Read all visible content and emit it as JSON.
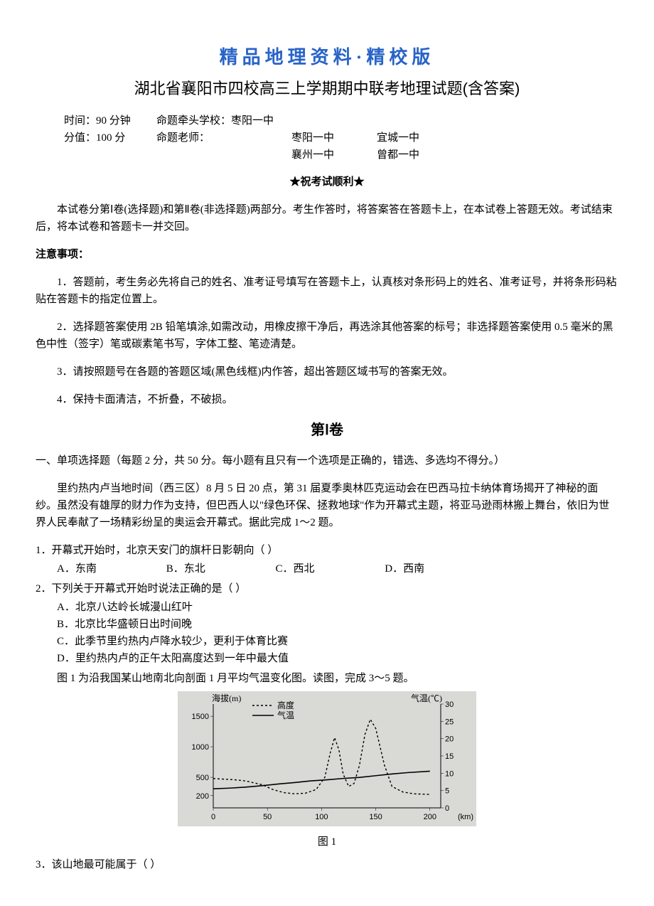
{
  "header_banner": "精品地理资料·精校版",
  "title": "湖北省襄阳市四校高三上学期期中联考地理试题(含答案)",
  "meta": {
    "time_label": "时间：90 分钟",
    "lead_school_label": "命题牵头学校：枣阳一中",
    "score_label": "分值：100 分",
    "teacher_label": "命题老师：",
    "schools": [
      "枣阳一中",
      "宜城一中",
      "襄州一中",
      "曾都一中"
    ]
  },
  "wish": "★祝考试顺利★",
  "intro_p1": "本试卷分第Ⅰ卷(选择题)和第Ⅱ卷(非选择题)两部分。考生作答时，将答案答在答题卡上，在本试卷上答题无效。考试结束后，将本试卷和答题卡一并交回。",
  "notice_header": "注意事项：",
  "notices": [
    "1．答题前，考生务必先将自己的姓名、准考证号填写在答题卡上，认真核对条形码上的姓名、准考证号，并将条形码粘贴在答题卡的指定位置上。",
    "2．选择题答案使用 2B 铅笔填涂,如需改动，用橡皮擦干净后，再选涂其他答案的标号；非选择题答案使用 0.5 毫米的黑色中性（签字）笔或碳素笔书写，字体工整、笔迹清楚。",
    "3．请按照题号在各题的答题区域(黑色线框)内作答，超出答题区域书写的答案无效。",
    "4．保持卡面清洁，不折叠，不破损。"
  ],
  "section1_title": "第Ⅰ卷",
  "mc_intro": "一、单项选择题（每题 2 分，共 50 分。每小题有且只有一个选项是正确的，错选、多选均不得分。）",
  "passage1": "里约热内卢当地时间（西三区）8 月 5 日 20 点，第 31 届夏季奥林匹克运动会在巴西马拉卡纳体育场揭开了神秘的面纱。虽然没有雄厚的财力作为支持，但巴西人以\"绿色环保、拯救地球\"作为开幕式主题，将亚马逊雨林搬上舞台，依旧为世界人民奉献了一场精彩纷呈的奥运会开幕式。据此完成 1～2 题。",
  "q1": {
    "stem": "1．开幕式开始时，北京天安门的旗杆日影朝向（   ）",
    "opts": {
      "A": "A．东南",
      "B": "B．东北",
      "C": "C．西北",
      "D": "D．西南"
    }
  },
  "q2": {
    "stem": "2．下列关于开幕式开始时说法正确的是（   ）",
    "opts": {
      "A": "A．北京八达岭长城漫山红叶",
      "B": "B．北京比华盛顿日出时间晚",
      "C": "C．此季节里约热内卢降水较少，更利于体育比赛",
      "D": "D．里约热内卢的正午太阳高度达到一年中最大值"
    }
  },
  "passage2": "图 1 为沿我国某山地南北向剖面 1 月平均气温变化图。读图，完成 3～5 题。",
  "figure1": {
    "caption": "图 1",
    "bg_color": "#d9d9d6",
    "left_axis_label": "海拔(m)",
    "right_axis_label": "气温(℃)",
    "legend_alt": "高度",
    "legend_temp": "气温",
    "x_ticks": [
      0,
      50,
      100,
      150,
      200
    ],
    "x_unit_label": "(km)",
    "left_ticks": [
      200,
      500,
      1000,
      1500
    ],
    "right_ticks": [
      0,
      5,
      10,
      15,
      20,
      25,
      30
    ],
    "altitude_series": [
      {
        "x": 0,
        "y": 480
      },
      {
        "x": 10,
        "y": 470
      },
      {
        "x": 20,
        "y": 460
      },
      {
        "x": 30,
        "y": 440
      },
      {
        "x": 45,
        "y": 380
      },
      {
        "x": 55,
        "y": 300
      },
      {
        "x": 65,
        "y": 250
      },
      {
        "x": 75,
        "y": 230
      },
      {
        "x": 85,
        "y": 240
      },
      {
        "x": 95,
        "y": 300
      },
      {
        "x": 103,
        "y": 500
      },
      {
        "x": 108,
        "y": 900
      },
      {
        "x": 112,
        "y": 1150
      },
      {
        "x": 116,
        "y": 950
      },
      {
        "x": 120,
        "y": 550
      },
      {
        "x": 125,
        "y": 350
      },
      {
        "x": 130,
        "y": 400
      },
      {
        "x": 135,
        "y": 700
      },
      {
        "x": 140,
        "y": 1200
      },
      {
        "x": 145,
        "y": 1450
      },
      {
        "x": 150,
        "y": 1300
      },
      {
        "x": 158,
        "y": 700
      },
      {
        "x": 165,
        "y": 350
      },
      {
        "x": 175,
        "y": 260
      },
      {
        "x": 185,
        "y": 230
      },
      {
        "x": 200,
        "y": 220
      }
    ],
    "temp_series": [
      {
        "x": 0,
        "y": 5.5
      },
      {
        "x": 15,
        "y": 5.7
      },
      {
        "x": 30,
        "y": 6.0
      },
      {
        "x": 45,
        "y": 6.4
      },
      {
        "x": 60,
        "y": 6.9
      },
      {
        "x": 75,
        "y": 7.3
      },
      {
        "x": 90,
        "y": 7.8
      },
      {
        "x": 105,
        "y": 8.1
      },
      {
        "x": 120,
        "y": 8.5
      },
      {
        "x": 135,
        "y": 8.8
      },
      {
        "x": 150,
        "y": 9.3
      },
      {
        "x": 165,
        "y": 9.8
      },
      {
        "x": 180,
        "y": 10.2
      },
      {
        "x": 200,
        "y": 10.6
      }
    ],
    "left_range": [
      0,
      1700
    ],
    "right_range": [
      0,
      30
    ],
    "x_range": [
      0,
      210
    ]
  },
  "q3_stem": "3．该山地最可能属于（   ）"
}
